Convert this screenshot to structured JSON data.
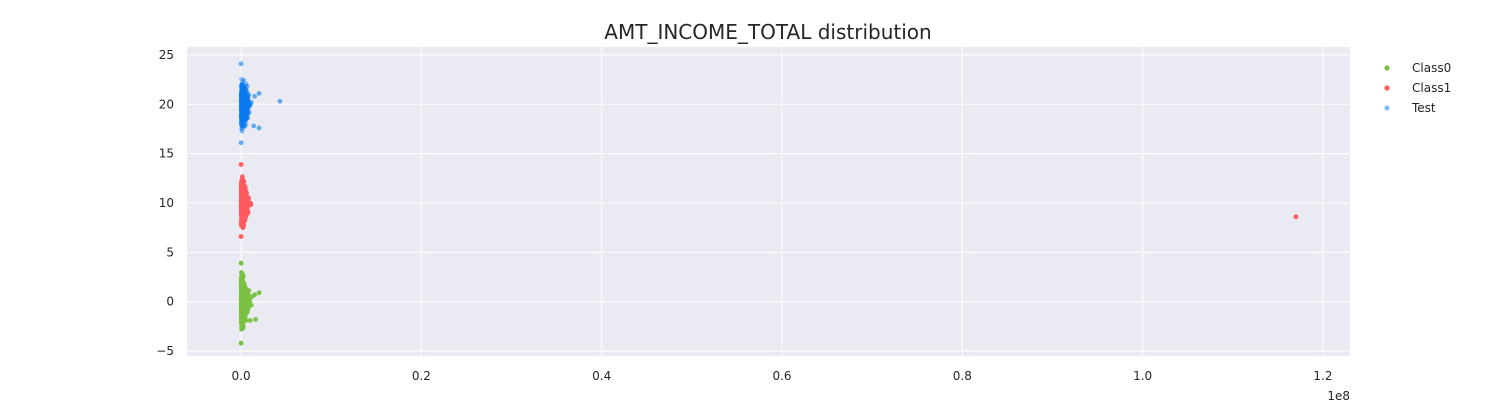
{
  "chart_data": {
    "type": "scatter",
    "title": "AMT_INCOME_TOTAL distribution",
    "xlabel": "",
    "ylabel": "",
    "x_offset_label": "1e8",
    "xlim": [
      -0.06,
      1.23
    ],
    "ylim": [
      -5.5,
      25.8
    ],
    "x_ticks": [
      0.0,
      0.2,
      0.4,
      0.6,
      0.8,
      1.0,
      1.2
    ],
    "x_tick_labels": [
      "0.0",
      "0.2",
      "0.4",
      "0.6",
      "0.8",
      "1.0",
      "1.2"
    ],
    "y_ticks": [
      -5,
      0,
      5,
      10,
      15,
      20,
      25
    ],
    "y_tick_labels": [
      "−5",
      "0",
      "5",
      "10",
      "15",
      "20",
      "25"
    ],
    "grid": true,
    "background": "#eaeaf2",
    "legend_position": "outside-top-right",
    "series": [
      {
        "name": "Class0",
        "color": "#7ac143",
        "y_center": 0,
        "y_spread": 3.9,
        "x_max_cluster": 0.011,
        "points": [
          {
            "x": 0.015,
            "y": 0.7
          },
          {
            "x": 0.02,
            "y": 0.9
          },
          {
            "x": 0.016,
            "y": -1.8
          },
          {
            "x": 0.01,
            "y": -1.9
          },
          {
            "x": 0.012,
            "y": 0.5
          },
          {
            "x": 0.0,
            "y": 3.9
          },
          {
            "x": 0.0,
            "y": -4.2
          }
        ]
      },
      {
        "name": "Class1",
        "color": "#ff5a5f",
        "y_center": 10,
        "y_spread": 3.9,
        "x_max_cluster": 0.011,
        "points": [
          {
            "x": 1.17,
            "y": 8.6
          },
          {
            "x": 0.0,
            "y": 13.9
          },
          {
            "x": 0.0,
            "y": 6.6
          }
        ]
      },
      {
        "name": "Test",
        "color": "#0a7bef",
        "y_center": 20,
        "y_spread": 4.0,
        "x_max_cluster": 0.012,
        "points": [
          {
            "x": 0.043,
            "y": 20.3
          },
          {
            "x": 0.02,
            "y": 17.6
          },
          {
            "x": 0.014,
            "y": 17.8
          },
          {
            "x": 0.02,
            "y": 21.1
          },
          {
            "x": 0.015,
            "y": 20.8
          },
          {
            "x": 0.0,
            "y": 24.1
          },
          {
            "x": 0.0,
            "y": 16.1
          }
        ]
      }
    ]
  }
}
